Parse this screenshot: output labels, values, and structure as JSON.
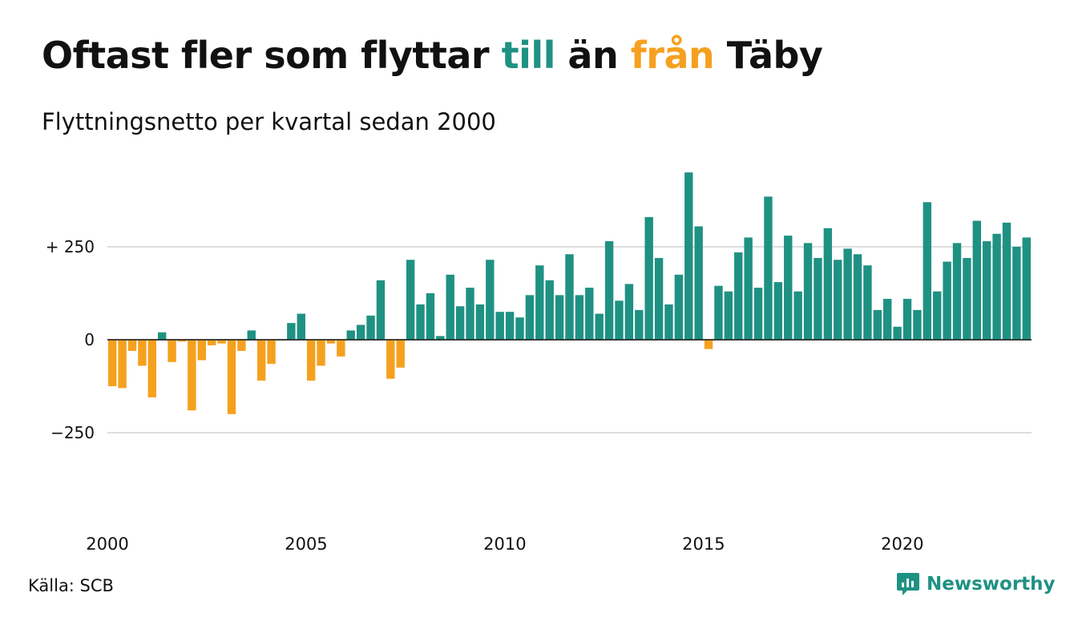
{
  "header": {
    "title_prefix": "Oftast fler som flyttar ",
    "title_till": "till",
    "title_middle": " än ",
    "title_fran": "från",
    "title_suffix": " Täby",
    "subtitle": "Flyttningsnetto per kvartal sedan 2000"
  },
  "footer": {
    "source": "Källa: SCB",
    "brand": "Newsworthy"
  },
  "colors": {
    "positive": "#1f9183",
    "negative": "#f5a11f",
    "grid": "#dddddd",
    "baseline": "#222222"
  },
  "chart_data": {
    "type": "bar",
    "title": "Oftast fler som flyttar till än från Täby",
    "subtitle": "Flyttningsnetto per kvartal sedan 2000",
    "xlabel": "",
    "ylabel": "",
    "ylim": [
      -450,
      450
    ],
    "yticks": [
      {
        "value": 250,
        "label": "+ 250"
      },
      {
        "value": 0,
        "label": "0"
      },
      {
        "value": -250,
        "label": "−250"
      }
    ],
    "xticks": [
      "2000",
      "2005",
      "2010",
      "2015",
      "2020"
    ],
    "start_year": 2000,
    "grid": true,
    "values": [
      -125,
      -130,
      -30,
      -70,
      -155,
      20,
      -60,
      -5,
      -190,
      -55,
      -15,
      -10,
      -200,
      -30,
      25,
      -110,
      -65,
      0,
      45,
      70,
      -110,
      -70,
      -10,
      -45,
      25,
      40,
      65,
      160,
      -105,
      -75,
      215,
      95,
      125,
      10,
      175,
      90,
      140,
      95,
      215,
      75,
      75,
      60,
      120,
      200,
      160,
      120,
      230,
      120,
      140,
      70,
      265,
      105,
      150,
      80,
      330,
      220,
      95,
      175,
      450,
      305,
      -25,
      145,
      130,
      235,
      275,
      140,
      385,
      155,
      280,
      130,
      260,
      220,
      300,
      215,
      245,
      230,
      200,
      80,
      110,
      35,
      110,
      80,
      370,
      130,
      210,
      260,
      220,
      320,
      265,
      285,
      315,
      250,
      275
    ]
  }
}
